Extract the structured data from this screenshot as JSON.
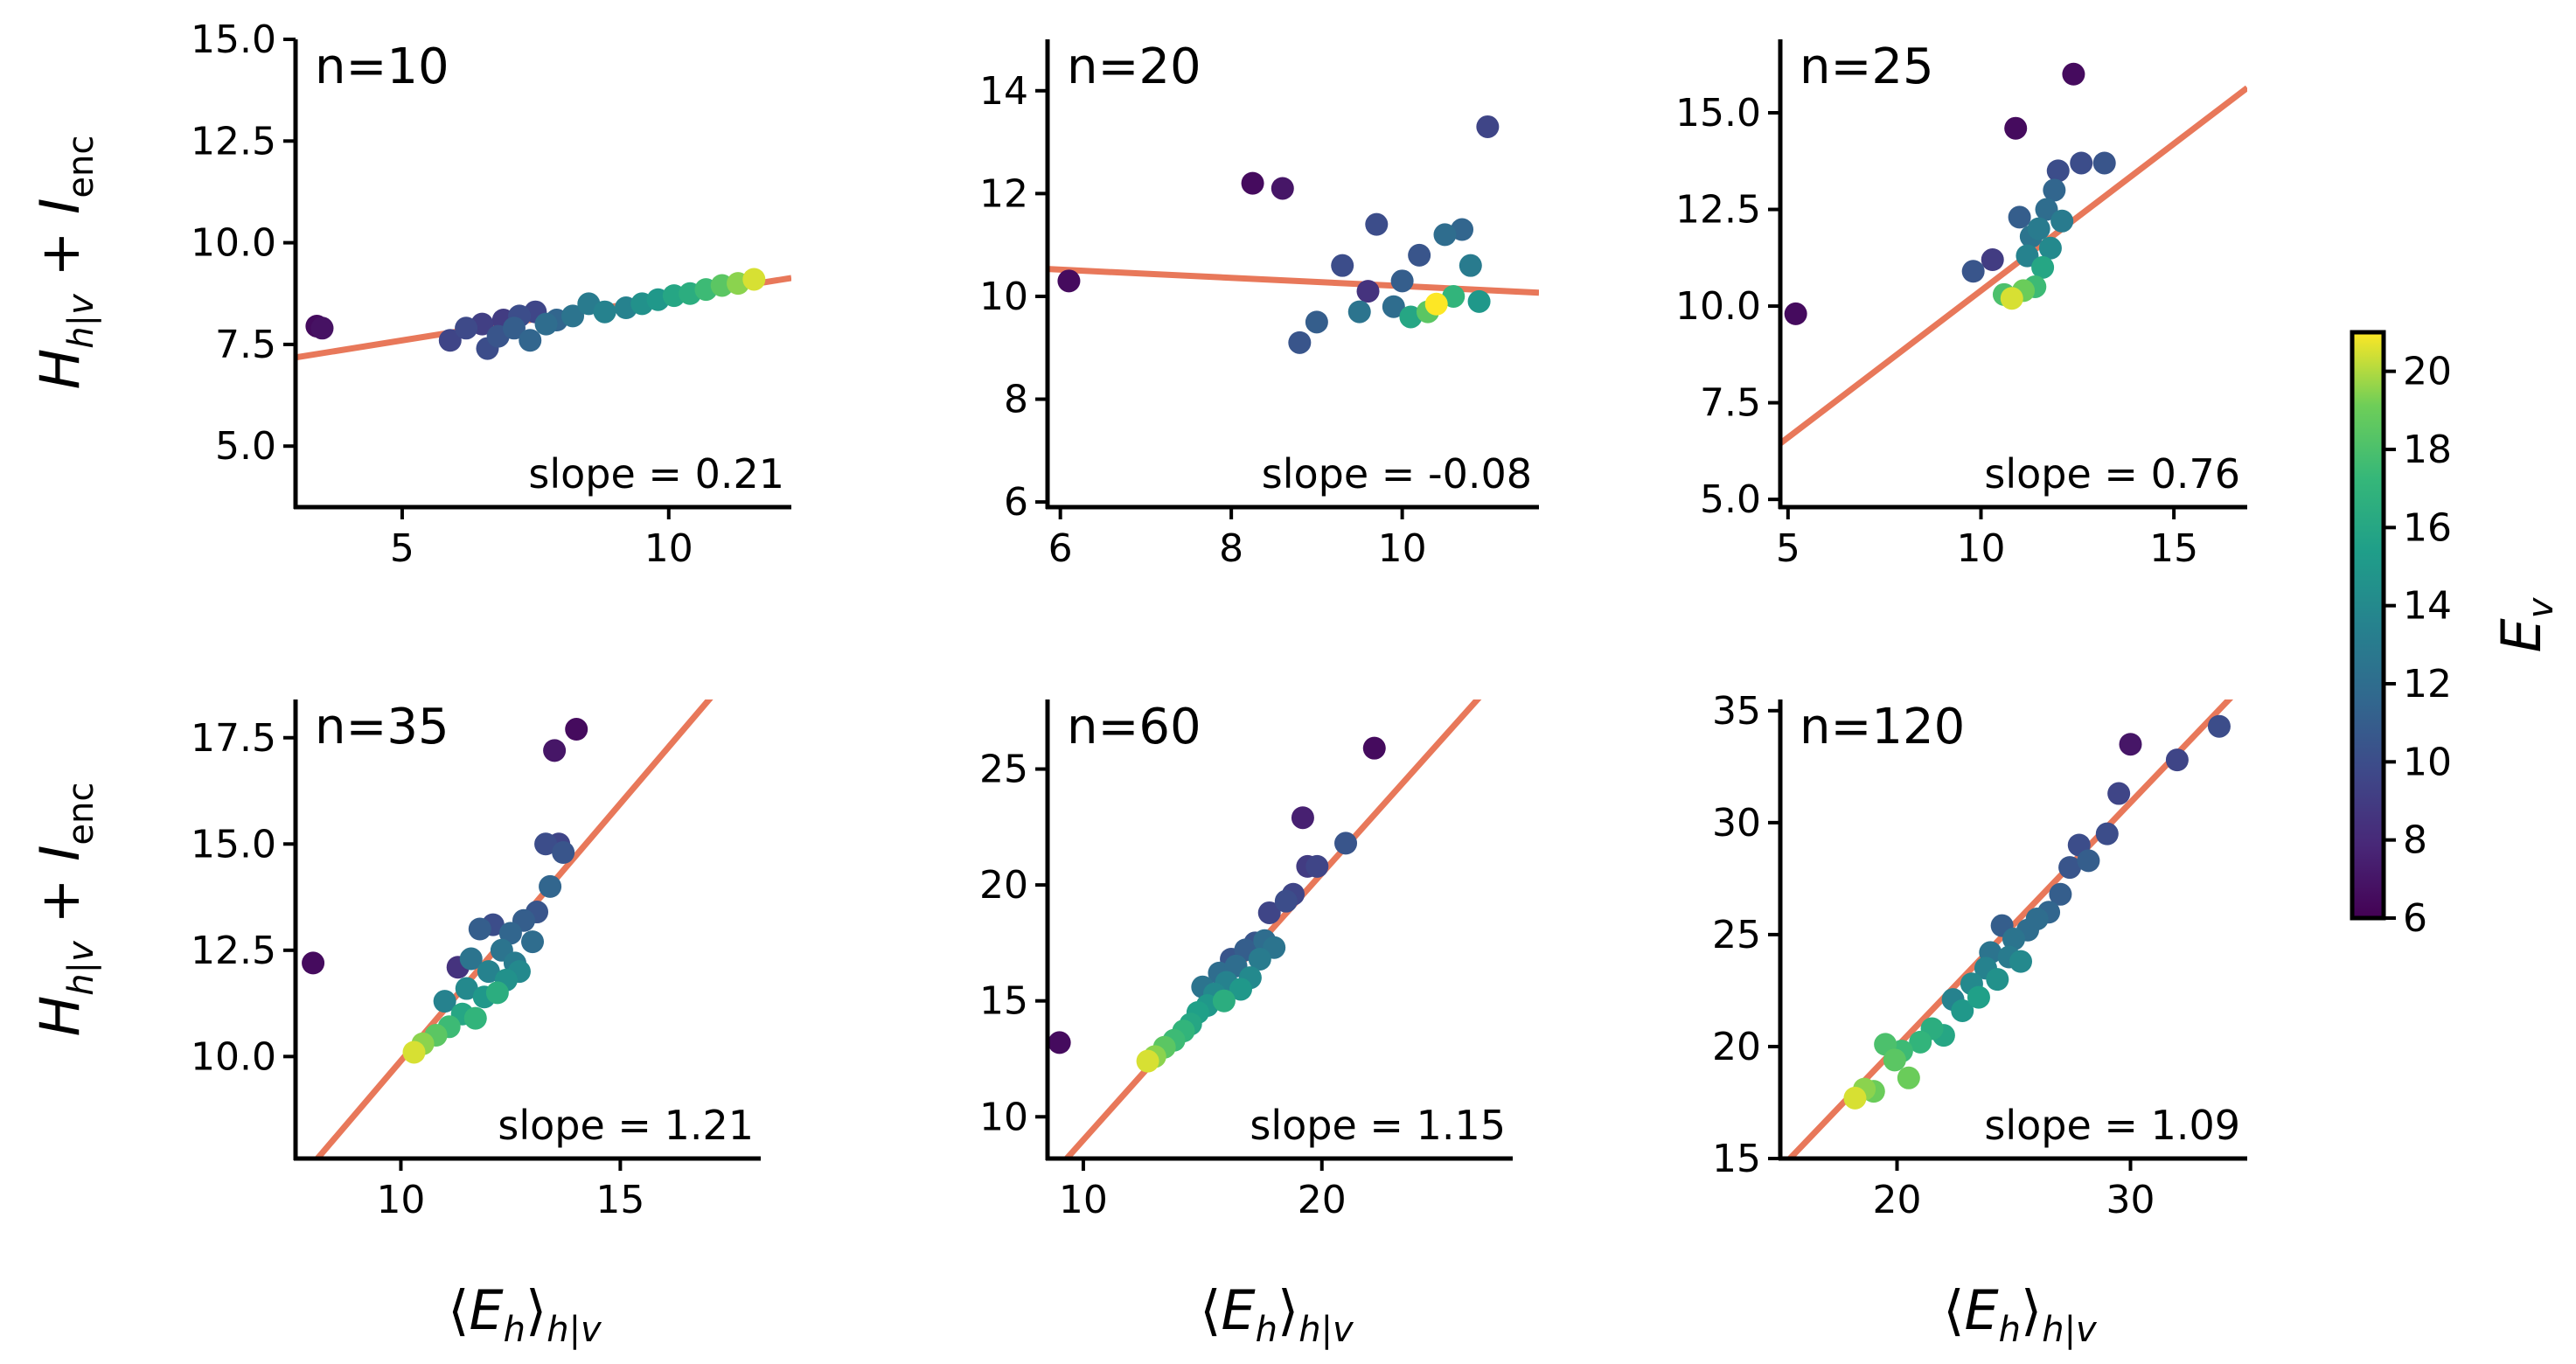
{
  "figure": {
    "ylabel": "H_{h|v} + I_enc",
    "xlabel": "⟨E_h⟩_{h|v}",
    "colorbar": {
      "label": "E_v",
      "colormap": "viridis",
      "range": [
        6,
        21
      ],
      "ticks": [
        6,
        8,
        10,
        12,
        14,
        16,
        18,
        20
      ]
    },
    "fit_line_color": "#e8785a"
  },
  "chart_data": [
    {
      "type": "scatter",
      "title": "n=10",
      "slope_label": "slope = 0.21",
      "xlim": [
        3,
        12.3
      ],
      "ylim": [
        3.5,
        15
      ],
      "xticks": [
        5,
        10
      ],
      "yticks": [
        5.0,
        7.5,
        10.0,
        12.5,
        15.0
      ],
      "ytick_decimals": 1,
      "fit": {
        "slope": 0.21,
        "intercept": 6.55
      },
      "points": [
        {
          "x": 3.4,
          "y": 7.95,
          "c": 6.5
        },
        {
          "x": 3.5,
          "y": 7.9,
          "c": 6.8
        },
        {
          "x": 5.9,
          "y": 7.6,
          "c": 9.5
        },
        {
          "x": 6.2,
          "y": 7.9,
          "c": 9.8
        },
        {
          "x": 6.5,
          "y": 8.0,
          "c": 9.2
        },
        {
          "x": 6.6,
          "y": 7.4,
          "c": 10.0
        },
        {
          "x": 6.8,
          "y": 7.7,
          "c": 10.5
        },
        {
          "x": 6.9,
          "y": 8.1,
          "c": 9.0
        },
        {
          "x": 7.1,
          "y": 7.9,
          "c": 11.0
        },
        {
          "x": 7.2,
          "y": 8.2,
          "c": 10.0
        },
        {
          "x": 7.4,
          "y": 7.6,
          "c": 11.5
        },
        {
          "x": 7.5,
          "y": 8.3,
          "c": 9.6
        },
        {
          "x": 7.7,
          "y": 8.0,
          "c": 12.0
        },
        {
          "x": 7.9,
          "y": 8.1,
          "c": 11.5
        },
        {
          "x": 8.2,
          "y": 8.2,
          "c": 12.5
        },
        {
          "x": 8.5,
          "y": 8.5,
          "c": 13.0
        },
        {
          "x": 8.8,
          "y": 8.3,
          "c": 13.5
        },
        {
          "x": 9.2,
          "y": 8.4,
          "c": 13.5
        },
        {
          "x": 9.5,
          "y": 8.5,
          "c": 14.5
        },
        {
          "x": 9.8,
          "y": 8.6,
          "c": 15.0
        },
        {
          "x": 10.1,
          "y": 8.7,
          "c": 16.0
        },
        {
          "x": 10.4,
          "y": 8.75,
          "c": 16.5
        },
        {
          "x": 10.7,
          "y": 8.85,
          "c": 17.5
        },
        {
          "x": 11.0,
          "y": 8.95,
          "c": 18.5
        },
        {
          "x": 11.3,
          "y": 9.0,
          "c": 19.5
        },
        {
          "x": 11.6,
          "y": 9.1,
          "c": 20.5
        }
      ]
    },
    {
      "type": "scatter",
      "title": "n=20",
      "slope_label": "slope = -0.08",
      "xlim": [
        5.85,
        11.6
      ],
      "ylim": [
        5.9,
        15
      ],
      "xticks": [
        6,
        8,
        10
      ],
      "yticks": [
        6,
        8,
        10,
        12,
        14
      ],
      "ytick_decimals": 0,
      "fit": {
        "slope": -0.08,
        "intercept": 11.0
      },
      "points": [
        {
          "x": 6.1,
          "y": 10.3,
          "c": 6.5
        },
        {
          "x": 8.25,
          "y": 12.2,
          "c": 6.5
        },
        {
          "x": 8.6,
          "y": 12.1,
          "c": 7.0
        },
        {
          "x": 8.8,
          "y": 9.1,
          "c": 10.5
        },
        {
          "x": 9.0,
          "y": 9.5,
          "c": 11.0
        },
        {
          "x": 9.3,
          "y": 10.6,
          "c": 10.0
        },
        {
          "x": 9.5,
          "y": 9.7,
          "c": 12.5
        },
        {
          "x": 9.6,
          "y": 10.1,
          "c": 8.5
        },
        {
          "x": 9.7,
          "y": 11.4,
          "c": 10.0
        },
        {
          "x": 9.9,
          "y": 9.8,
          "c": 12.0
        },
        {
          "x": 10.0,
          "y": 10.3,
          "c": 11.0
        },
        {
          "x": 10.1,
          "y": 9.6,
          "c": 16.0
        },
        {
          "x": 10.2,
          "y": 10.8,
          "c": 10.5
        },
        {
          "x": 10.3,
          "y": 9.7,
          "c": 18.5
        },
        {
          "x": 10.4,
          "y": 9.85,
          "c": 21.0
        },
        {
          "x": 10.5,
          "y": 11.2,
          "c": 12.0
        },
        {
          "x": 10.6,
          "y": 10.0,
          "c": 17.0
        },
        {
          "x": 10.7,
          "y": 11.3,
          "c": 11.5
        },
        {
          "x": 10.8,
          "y": 10.6,
          "c": 13.0
        },
        {
          "x": 10.9,
          "y": 9.9,
          "c": 15.0
        },
        {
          "x": 11.0,
          "y": 13.3,
          "c": 9.5
        }
      ]
    },
    {
      "type": "scatter",
      "title": "n=25",
      "slope_label": "slope = 0.76",
      "xlim": [
        4.8,
        16.9
      ],
      "ylim": [
        4.8,
        16.9
      ],
      "xticks": [
        5,
        10,
        15
      ],
      "yticks": [
        5.0,
        7.5,
        10.0,
        12.5,
        15.0
      ],
      "ytick_decimals": 1,
      "fit": {
        "slope": 0.76,
        "intercept": 2.8
      },
      "points": [
        {
          "x": 5.2,
          "y": 9.8,
          "c": 6.5
        },
        {
          "x": 9.8,
          "y": 10.9,
          "c": 10.5
        },
        {
          "x": 10.3,
          "y": 11.2,
          "c": 9.0
        },
        {
          "x": 10.6,
          "y": 10.3,
          "c": 18.0
        },
        {
          "x": 10.8,
          "y": 10.2,
          "c": 20.5
        },
        {
          "x": 10.9,
          "y": 14.6,
          "c": 6.5
        },
        {
          "x": 11.0,
          "y": 12.3,
          "c": 11.0
        },
        {
          "x": 11.1,
          "y": 10.4,
          "c": 19.0
        },
        {
          "x": 11.2,
          "y": 11.3,
          "c": 13.5
        },
        {
          "x": 11.3,
          "y": 11.8,
          "c": 12.5
        },
        {
          "x": 11.4,
          "y": 10.5,
          "c": 17.5
        },
        {
          "x": 11.5,
          "y": 12.0,
          "c": 13.0
        },
        {
          "x": 11.6,
          "y": 11.0,
          "c": 16.0
        },
        {
          "x": 11.7,
          "y": 12.5,
          "c": 12.0
        },
        {
          "x": 11.8,
          "y": 11.5,
          "c": 14.0
        },
        {
          "x": 11.9,
          "y": 13.0,
          "c": 11.5
        },
        {
          "x": 12.0,
          "y": 13.5,
          "c": 10.0
        },
        {
          "x": 12.1,
          "y": 12.2,
          "c": 13.0
        },
        {
          "x": 12.4,
          "y": 16.0,
          "c": 6.5
        },
        {
          "x": 12.6,
          "y": 13.7,
          "c": 10.0
        },
        {
          "x": 13.2,
          "y": 13.7,
          "c": 10.5
        }
      ]
    },
    {
      "type": "scatter",
      "title": "n=35",
      "slope_label": "slope = 1.21",
      "xlim": [
        7.6,
        18.2
      ],
      "ylim": [
        7.6,
        18.4
      ],
      "xticks": [
        10,
        15
      ],
      "yticks": [
        10.0,
        12.5,
        15.0,
        17.5
      ],
      "ytick_decimals": 1,
      "fit": {
        "slope": 1.21,
        "intercept": -2.2
      },
      "points": [
        {
          "x": 8.0,
          "y": 12.2,
          "c": 6.5
        },
        {
          "x": 10.3,
          "y": 10.1,
          "c": 20.5
        },
        {
          "x": 10.5,
          "y": 10.3,
          "c": 19.5
        },
        {
          "x": 10.8,
          "y": 10.5,
          "c": 18.5
        },
        {
          "x": 11.0,
          "y": 11.3,
          "c": 13.5
        },
        {
          "x": 11.1,
          "y": 10.7,
          "c": 17.5
        },
        {
          "x": 11.3,
          "y": 12.1,
          "c": 8.5
        },
        {
          "x": 11.4,
          "y": 11.0,
          "c": 16.0
        },
        {
          "x": 11.5,
          "y": 11.6,
          "c": 14.0
        },
        {
          "x": 11.6,
          "y": 12.3,
          "c": 12.5
        },
        {
          "x": 11.7,
          "y": 10.9,
          "c": 17.0
        },
        {
          "x": 11.8,
          "y": 13.0,
          "c": 11.0
        },
        {
          "x": 11.9,
          "y": 11.4,
          "c": 15.0
        },
        {
          "x": 12.0,
          "y": 12.0,
          "c": 13.5
        },
        {
          "x": 12.1,
          "y": 13.1,
          "c": 10.0
        },
        {
          "x": 12.2,
          "y": 11.5,
          "c": 16.5
        },
        {
          "x": 12.3,
          "y": 12.5,
          "c": 12.5
        },
        {
          "x": 12.4,
          "y": 11.8,
          "c": 14.5
        },
        {
          "x": 12.5,
          "y": 12.9,
          "c": 11.5
        },
        {
          "x": 12.6,
          "y": 12.2,
          "c": 13.0
        },
        {
          "x": 12.7,
          "y": 12.0,
          "c": 14.0
        },
        {
          "x": 12.8,
          "y": 13.2,
          "c": 11.0
        },
        {
          "x": 13.0,
          "y": 12.7,
          "c": 12.0
        },
        {
          "x": 13.1,
          "y": 13.4,
          "c": 10.5
        },
        {
          "x": 13.3,
          "y": 15.0,
          "c": 10.0
        },
        {
          "x": 13.4,
          "y": 14.0,
          "c": 11.5
        },
        {
          "x": 13.5,
          "y": 17.2,
          "c": 7.0
        },
        {
          "x": 13.6,
          "y": 15.0,
          "c": 9.5
        },
        {
          "x": 13.7,
          "y": 14.8,
          "c": 10.5
        },
        {
          "x": 14.0,
          "y": 17.7,
          "c": 6.5
        }
      ]
    },
    {
      "type": "scatter",
      "title": "n=60",
      "slope_label": "slope = 1.15",
      "xlim": [
        8.5,
        28
      ],
      "ylim": [
        8.2,
        28
      ],
      "xticks": [
        10,
        20
      ],
      "yticks": [
        10,
        15,
        20,
        25
      ],
      "ytick_decimals": 0,
      "fit": {
        "slope": 1.15,
        "intercept": -2.5
      },
      "points": [
        {
          "x": 9.0,
          "y": 13.2,
          "c": 6.5
        },
        {
          "x": 12.7,
          "y": 12.4,
          "c": 20.5
        },
        {
          "x": 13.0,
          "y": 12.6,
          "c": 19.5
        },
        {
          "x": 13.4,
          "y": 13.0,
          "c": 18.5
        },
        {
          "x": 13.8,
          "y": 13.3,
          "c": 17.5
        },
        {
          "x": 14.2,
          "y": 13.7,
          "c": 17.0
        },
        {
          "x": 14.5,
          "y": 14.0,
          "c": 16.0
        },
        {
          "x": 14.8,
          "y": 14.5,
          "c": 15.5
        },
        {
          "x": 15.0,
          "y": 15.6,
          "c": 12.5
        },
        {
          "x": 15.2,
          "y": 14.8,
          "c": 15.0
        },
        {
          "x": 15.5,
          "y": 15.3,
          "c": 14.0
        },
        {
          "x": 15.7,
          "y": 16.2,
          "c": 12.0
        },
        {
          "x": 15.9,
          "y": 15.0,
          "c": 16.5
        },
        {
          "x": 16.0,
          "y": 15.8,
          "c": 13.5
        },
        {
          "x": 16.2,
          "y": 16.8,
          "c": 10.5
        },
        {
          "x": 16.4,
          "y": 16.5,
          "c": 12.0
        },
        {
          "x": 16.6,
          "y": 15.5,
          "c": 15.0
        },
        {
          "x": 16.8,
          "y": 17.2,
          "c": 11.0
        },
        {
          "x": 17.0,
          "y": 16.0,
          "c": 14.0
        },
        {
          "x": 17.2,
          "y": 17.5,
          "c": 10.5
        },
        {
          "x": 17.4,
          "y": 16.8,
          "c": 13.0
        },
        {
          "x": 17.6,
          "y": 17.6,
          "c": 12.0
        },
        {
          "x": 17.8,
          "y": 18.8,
          "c": 9.5
        },
        {
          "x": 18.0,
          "y": 17.3,
          "c": 12.5
        },
        {
          "x": 18.5,
          "y": 19.3,
          "c": 10.0
        },
        {
          "x": 18.8,
          "y": 19.6,
          "c": 9.5
        },
        {
          "x": 19.2,
          "y": 22.9,
          "c": 7.5
        },
        {
          "x": 19.4,
          "y": 20.8,
          "c": 9.0
        },
        {
          "x": 19.8,
          "y": 20.8,
          "c": 9.5
        },
        {
          "x": 21.0,
          "y": 21.8,
          "c": 10.5
        },
        {
          "x": 22.2,
          "y": 25.9,
          "c": 6.5
        }
      ]
    },
    {
      "type": "scatter",
      "title": "n=120",
      "slope_label": "slope = 1.09",
      "xlim": [
        15,
        35
      ],
      "ylim": [
        15,
        35.5
      ],
      "xticks": [
        20,
        30
      ],
      "yticks": [
        15,
        20,
        25,
        30,
        35
      ],
      "ytick_decimals": 0,
      "fit": {
        "slope": 1.09,
        "intercept": -1.8
      },
      "points": [
        {
          "x": 18.2,
          "y": 17.7,
          "c": 20.5
        },
        {
          "x": 18.6,
          "y": 18.1,
          "c": 19.5
        },
        {
          "x": 19.0,
          "y": 18.0,
          "c": 19.0
        },
        {
          "x": 19.5,
          "y": 20.1,
          "c": 18.0
        },
        {
          "x": 19.9,
          "y": 19.4,
          "c": 18.5
        },
        {
          "x": 20.2,
          "y": 19.8,
          "c": 17.5
        },
        {
          "x": 20.5,
          "y": 18.6,
          "c": 19.0
        },
        {
          "x": 21.0,
          "y": 20.2,
          "c": 17.0
        },
        {
          "x": 21.5,
          "y": 20.8,
          "c": 16.5
        },
        {
          "x": 22.0,
          "y": 20.5,
          "c": 16.0
        },
        {
          "x": 22.4,
          "y": 22.1,
          "c": 13.5
        },
        {
          "x": 22.8,
          "y": 21.6,
          "c": 15.0
        },
        {
          "x": 23.2,
          "y": 22.8,
          "c": 14.0
        },
        {
          "x": 23.5,
          "y": 22.2,
          "c": 15.5
        },
        {
          "x": 23.8,
          "y": 23.5,
          "c": 13.5
        },
        {
          "x": 24.0,
          "y": 24.2,
          "c": 12.5
        },
        {
          "x": 24.3,
          "y": 23.0,
          "c": 14.5
        },
        {
          "x": 24.5,
          "y": 25.4,
          "c": 11.0
        },
        {
          "x": 24.8,
          "y": 24.0,
          "c": 13.0
        },
        {
          "x": 25.0,
          "y": 24.8,
          "c": 12.5
        },
        {
          "x": 25.3,
          "y": 23.8,
          "c": 14.0
        },
        {
          "x": 25.6,
          "y": 25.2,
          "c": 12.0
        },
        {
          "x": 26.0,
          "y": 25.7,
          "c": 12.0
        },
        {
          "x": 26.5,
          "y": 26.0,
          "c": 11.5
        },
        {
          "x": 27.0,
          "y": 26.8,
          "c": 11.0
        },
        {
          "x": 27.4,
          "y": 28.0,
          "c": 10.5
        },
        {
          "x": 27.8,
          "y": 29.0,
          "c": 10.0
        },
        {
          "x": 28.2,
          "y": 28.3,
          "c": 11.0
        },
        {
          "x": 29.0,
          "y": 29.5,
          "c": 10.0
        },
        {
          "x": 29.5,
          "y": 31.3,
          "c": 9.5
        },
        {
          "x": 30.0,
          "y": 33.5,
          "c": 7.0
        },
        {
          "x": 32.0,
          "y": 32.8,
          "c": 9.5
        },
        {
          "x": 33.8,
          "y": 34.3,
          "c": 10.0
        }
      ]
    }
  ]
}
